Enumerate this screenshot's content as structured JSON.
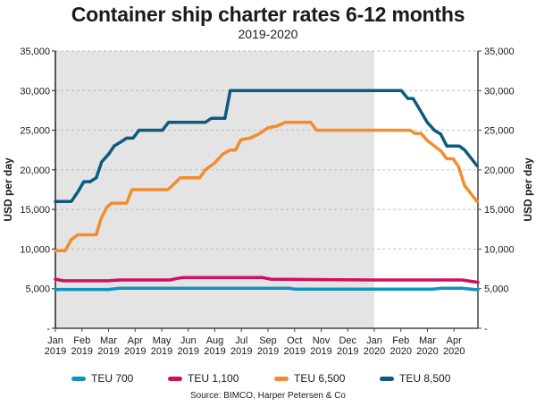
{
  "chart_data": {
    "type": "line",
    "title": "Container ship charter rates 6-12 months",
    "subtitle": "2019-2020",
    "ylabel_left": "USD per day",
    "ylabel_right": "USD per day",
    "xlabel": "",
    "ylim": [
      0,
      35000
    ],
    "y_ticks": [
      0,
      5000,
      10000,
      15000,
      20000,
      25000,
      30000,
      35000
    ],
    "y_tick_labels": [
      "-",
      "5,000",
      "10,000",
      "15,000",
      "20,000",
      "25,000",
      "30,000",
      "35,000"
    ],
    "x_range_months": [
      0,
      15.9
    ],
    "x_ticks": [
      {
        "month": 0,
        "label_top": "Jan",
        "label_bottom": "2019"
      },
      {
        "month": 1,
        "label_top": "Feb",
        "label_bottom": "2019"
      },
      {
        "month": 2,
        "label_top": "Mar",
        "label_bottom": "2019"
      },
      {
        "month": 3,
        "label_top": "Apr",
        "label_bottom": "2019"
      },
      {
        "month": 4,
        "label_top": "May",
        "label_bottom": "2019"
      },
      {
        "month": 5,
        "label_top": "Jun",
        "label_bottom": "2019"
      },
      {
        "month": 6,
        "label_top": "Aug",
        "label_bottom": "2019"
      },
      {
        "month": 7,
        "label_top": "Jul",
        "label_bottom": "2019"
      },
      {
        "month": 8,
        "label_top": "Sep",
        "label_bottom": "2019"
      },
      {
        "month": 9,
        "label_top": "Oct",
        "label_bottom": "2019"
      },
      {
        "month": 10,
        "label_top": "Nov",
        "label_bottom": "2019"
      },
      {
        "month": 11,
        "label_top": "Dec",
        "label_bottom": "2019"
      },
      {
        "month": 12,
        "label_top": "Jan",
        "label_bottom": "2020"
      },
      {
        "month": 13,
        "label_top": "Feb",
        "label_bottom": "2020"
      },
      {
        "month": 14,
        "label_top": "Mar",
        "label_bottom": "2020"
      },
      {
        "month": 15,
        "label_top": "Apr",
        "label_bottom": "2020"
      }
    ],
    "shaded_region_months": [
      0,
      12
    ],
    "grid": "horizontal dashed",
    "legend_position": "bottom",
    "series": [
      {
        "name": "TEU 700",
        "color": "#0e93c2",
        "points": [
          [
            0,
            4900
          ],
          [
            2.0,
            4900
          ],
          [
            2.4,
            5050
          ],
          [
            8.8,
            5050
          ],
          [
            9.0,
            4950
          ],
          [
            14.2,
            4950
          ],
          [
            14.5,
            5050
          ],
          [
            15.3,
            5050
          ],
          [
            15.9,
            4850
          ]
        ]
      },
      {
        "name": "TEU 1,100",
        "color": "#d0105f",
        "points": [
          [
            0,
            6200
          ],
          [
            0.3,
            6000
          ],
          [
            2.0,
            6000
          ],
          [
            2.4,
            6100
          ],
          [
            4.3,
            6100
          ],
          [
            4.6,
            6300
          ],
          [
            4.8,
            6400
          ],
          [
            7.8,
            6400
          ],
          [
            8.1,
            6200
          ],
          [
            12.0,
            6100
          ],
          [
            15.3,
            6100
          ],
          [
            15.9,
            5800
          ]
        ]
      },
      {
        "name": "TEU 6,500",
        "color": "#f28c2e",
        "points": [
          [
            0,
            9800
          ],
          [
            0.37,
            9800
          ],
          [
            0.6,
            11200
          ],
          [
            0.84,
            11800
          ],
          [
            1.54,
            11800
          ],
          [
            1.71,
            13800
          ],
          [
            1.94,
            15300
          ],
          [
            2.11,
            15800
          ],
          [
            2.68,
            15800
          ],
          [
            2.88,
            17500
          ],
          [
            4.23,
            17500
          ],
          [
            4.46,
            18200
          ],
          [
            4.7,
            19000
          ],
          [
            5.44,
            19000
          ],
          [
            5.64,
            20000
          ],
          [
            5.97,
            20800
          ],
          [
            6.31,
            22000
          ],
          [
            6.58,
            22500
          ],
          [
            6.78,
            22500
          ],
          [
            6.98,
            23800
          ],
          [
            7.32,
            24000
          ],
          [
            7.65,
            24500
          ],
          [
            7.99,
            25300
          ],
          [
            8.32,
            25500
          ],
          [
            8.66,
            26000
          ],
          [
            9.6,
            26000
          ],
          [
            9.83,
            25000
          ],
          [
            13.36,
            25000
          ],
          [
            13.52,
            24600
          ],
          [
            13.76,
            24600
          ],
          [
            13.99,
            23700
          ],
          [
            14.5,
            22400
          ],
          [
            14.73,
            21400
          ],
          [
            14.97,
            21400
          ],
          [
            15.17,
            20400
          ],
          [
            15.4,
            18000
          ],
          [
            15.87,
            16000
          ]
        ]
      },
      {
        "name": "TEU 8,500",
        "color": "#0c5a7e",
        "points": [
          [
            0,
            16000
          ],
          [
            0.6,
            16000
          ],
          [
            0.84,
            17200
          ],
          [
            1.07,
            18500
          ],
          [
            1.31,
            18500
          ],
          [
            1.54,
            19000
          ],
          [
            1.74,
            21000
          ],
          [
            2.01,
            22000
          ],
          [
            2.21,
            23000
          ],
          [
            2.45,
            23500
          ],
          [
            2.68,
            24000
          ],
          [
            2.92,
            24000
          ],
          [
            3.15,
            25000
          ],
          [
            4.03,
            25000
          ],
          [
            4.26,
            26000
          ],
          [
            5.64,
            26000
          ],
          [
            5.87,
            26500
          ],
          [
            6.38,
            26500
          ],
          [
            6.58,
            30000
          ],
          [
            13.02,
            30000
          ],
          [
            13.26,
            29000
          ],
          [
            13.46,
            29000
          ],
          [
            13.73,
            27500
          ],
          [
            13.99,
            26000
          ],
          [
            14.26,
            25000
          ],
          [
            14.5,
            24500
          ],
          [
            14.73,
            23000
          ],
          [
            15.2,
            23000
          ],
          [
            15.4,
            22500
          ],
          [
            15.87,
            20500
          ]
        ]
      }
    ],
    "source": "Source: BIMCO, Harper Petersen & Co"
  },
  "legend": [
    {
      "label": "TEU 700",
      "color": "#0e93c2"
    },
    {
      "label": "TEU 1,100",
      "color": "#d0105f"
    },
    {
      "label": "TEU 6,500",
      "color": "#f28c2e"
    },
    {
      "label": "TEU 8,500",
      "color": "#0c5a7e"
    }
  ]
}
